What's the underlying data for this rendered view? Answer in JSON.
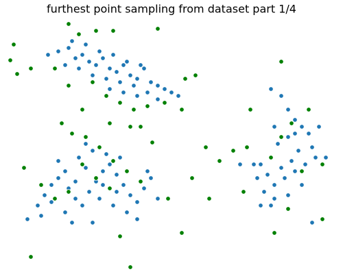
{
  "chart_data": {
    "type": "scatter",
    "title": "furthest point sampling from dataset part 1/4",
    "xlim": [
      10,
      490
    ],
    "ylim": [
      5,
      370
    ],
    "axes": false,
    "series": [
      {
        "color": "#1f77b4",
        "x": [
          70,
          85,
          100,
          110,
          120,
          130,
          140,
          150,
          160,
          170,
          180,
          190,
          200,
          210,
          220,
          230,
          240,
          250,
          260,
          95,
          115,
          135,
          155,
          175,
          195,
          215,
          145,
          165,
          185,
          205,
          125,
          105,
          230,
          200,
          180,
          160,
          40,
          55,
          65,
          75,
          85,
          95,
          100,
          110,
          120,
          130,
          140,
          150,
          160,
          170,
          180,
          190,
          200,
          210,
          220,
          115,
          135,
          155,
          175,
          125,
          145,
          165,
          185,
          95,
          75,
          60,
          105,
          135,
          200,
          215,
          230,
          85,
          125,
          150,
          110,
          170,
          395,
          410,
          420,
          430,
          440,
          450,
          455,
          460,
          445,
          430,
          415,
          400,
          385,
          375,
          380,
          395,
          405,
          420,
          435,
          425,
          410,
          390,
          370,
          400,
          420,
          440,
          465,
          475,
          455,
          380,
          395,
          350,
          430,
          400
        ],
        "y": [
          320,
          325,
          330,
          315,
          320,
          310,
          305,
          315,
          300,
          295,
          305,
          290,
          285,
          300,
          280,
          275,
          270,
          265,
          260,
          305,
          300,
          290,
          285,
          280,
          275,
          265,
          325,
          320,
          310,
          305,
          335,
          340,
          255,
          260,
          265,
          270,
          80,
          100,
          115,
          130,
          140,
          150,
          125,
          110,
          100,
          120,
          135,
          150,
          160,
          145,
          130,
          115,
          105,
          125,
          140,
          170,
          180,
          175,
          170,
          155,
          110,
          100,
          90,
          90,
          105,
          85,
          75,
          75,
          80,
          150,
          110,
          165,
          190,
          130,
          135,
          120,
          270,
          260,
          240,
          225,
          215,
          205,
          185,
          170,
          160,
          150,
          140,
          130,
          120,
          140,
          160,
          170,
          190,
          200,
          180,
          165,
          155,
          145,
          160,
          110,
          115,
          130,
          215,
          170,
          75,
          100,
          100,
          160,
          205,
          215
        ]
      },
      {
        "color": "#008000",
        "x": [
          20,
          15,
          100,
          115,
          140,
          165,
          230,
          45,
          25,
          135,
          155,
          175,
          195,
          215,
          240,
          270,
          285,
          265,
          190,
          160,
          120,
          205,
          100,
          80,
          90,
          105,
          125,
          145,
          165,
          185,
          205,
          120,
          140,
          160,
          100,
          80,
          60,
          35,
          45,
          190,
          175,
          265,
          245,
          280,
          305,
          300,
          320,
          222,
          340,
          355,
          365,
          410,
          425,
          440,
          470,
          470,
          410,
          420,
          400,
          360,
          450,
          395
        ],
        "y": [
          335,
          312,
          365,
          350,
          355,
          355,
          358,
          300,
          292,
          280,
          260,
          250,
          240,
          245,
          250,
          285,
          290,
          240,
          215,
          220,
          240,
          215,
          275,
          300,
          220,
          205,
          200,
          185,
          165,
          150,
          135,
          160,
          140,
          125,
          120,
          110,
          130,
          155,
          25,
          10,
          55,
          60,
          110,
          140,
          110,
          185,
          165,
          192,
          180,
          120,
          240,
          310,
          220,
          150,
          80,
          160,
          200,
          95,
          60,
          185,
          240,
          170
        ]
      }
    ]
  }
}
